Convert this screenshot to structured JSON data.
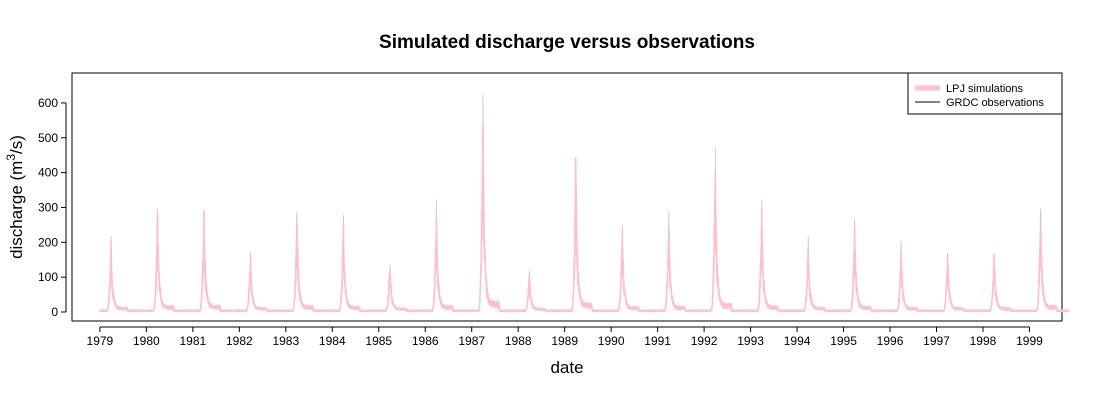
{
  "chart_data": {
    "type": "line",
    "title": "Simulated discharge versus observations",
    "xlabel": "date",
    "ylabel_main": "discharge (m",
    "ylabel_sup": "3",
    "ylabel_tail": "/s)",
    "ylim": [
      0,
      680
    ],
    "xlim": [
      1978.4,
      1999.7
    ],
    "y_ticks": [
      0,
      100,
      200,
      300,
      400,
      500,
      600
    ],
    "x_ticks": [
      1979,
      1980,
      1981,
      1982,
      1983,
      1984,
      1985,
      1986,
      1987,
      1988,
      1989,
      1990,
      1991,
      1992,
      1993,
      1994,
      1995,
      1996,
      1997,
      1998,
      1999
    ],
    "grid": false,
    "legend_position": "top-right",
    "series": [
      {
        "name": "LPJ simulations",
        "color": "#FFC0CB",
        "annual_peaks": [
          {
            "year": 1979,
            "peak": 210
          },
          {
            "year": 1980,
            "peak": 300
          },
          {
            "year": 1981,
            "peak": 310
          },
          {
            "year": 1982,
            "peak": 175
          },
          {
            "year": 1983,
            "peak": 295
          },
          {
            "year": 1984,
            "peak": 265
          },
          {
            "year": 1985,
            "peak": 150
          },
          {
            "year": 1986,
            "peak": 300
          },
          {
            "year": 1987,
            "peak": 600
          },
          {
            "year": 1988,
            "peak": 120
          },
          {
            "year": 1989,
            "peak": 480
          },
          {
            "year": 1990,
            "peak": 245
          },
          {
            "year": 1991,
            "peak": 265
          },
          {
            "year": 1992,
            "peak": 450
          },
          {
            "year": 1993,
            "peak": 300
          },
          {
            "year": 1994,
            "peak": 205
          },
          {
            "year": 1995,
            "peak": 265
          },
          {
            "year": 1996,
            "peak": 190
          },
          {
            "year": 1997,
            "peak": 180
          },
          {
            "year": 1998,
            "peak": 180
          },
          {
            "year": 1999,
            "peak": 300
          }
        ]
      },
      {
        "name": "GRDC observations",
        "color": "#000000",
        "annual_peaks": [
          {
            "year": 1979,
            "peak": 222
          },
          {
            "year": 1980,
            "peak": 330
          },
          {
            "year": 1981,
            "peak": 340
          },
          {
            "year": 1982,
            "peak": 190
          },
          {
            "year": 1983,
            "peak": 330
          },
          {
            "year": 1984,
            "peak": 292
          },
          {
            "year": 1985,
            "peak": 160
          },
          {
            "year": 1986,
            "peak": 335
          },
          {
            "year": 1987,
            "peak": 660
          },
          {
            "year": 1988,
            "peak": 130
          },
          {
            "year": 1989,
            "peak": 520
          },
          {
            "year": 1990,
            "peak": 265
          },
          {
            "year": 1991,
            "peak": 297
          },
          {
            "year": 1992,
            "peak": 503
          },
          {
            "year": 1993,
            "peak": 335
          },
          {
            "year": 1994,
            "peak": 228
          },
          {
            "year": 1995,
            "peak": 292
          },
          {
            "year": 1996,
            "peak": 210
          },
          {
            "year": 1997,
            "peak": 195
          },
          {
            "year": 1998,
            "peak": 197
          },
          {
            "year": 1999,
            "peak": 333
          }
        ]
      }
    ]
  }
}
